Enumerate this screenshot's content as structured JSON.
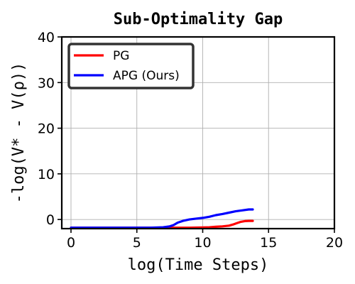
{
  "chart_data": {
    "type": "line",
    "title": "Sub-Optimality Gap",
    "xlabel": "log(Time Steps)",
    "ylabel": "-log(V* - V(ρ))",
    "xlim": [
      -0.7,
      20
    ],
    "ylim": [
      -2,
      40
    ],
    "xticks": [
      0,
      5,
      10,
      15,
      20
    ],
    "yticks": [
      0,
      10,
      20,
      30,
      40
    ],
    "grid": true,
    "legend": {
      "placement": "top-left"
    },
    "series": [
      {
        "name": "PG",
        "color": "#ff0000",
        "x": [
          0,
          2,
          4,
          6,
          8,
          9,
          10,
          10.5,
          11,
          11.5,
          12,
          12.3,
          12.6,
          12.9,
          13.2,
          13.5,
          13.8
        ],
        "y": [
          -1.8,
          -1.8,
          -1.8,
          -1.8,
          -1.8,
          -1.8,
          -1.75,
          -1.7,
          -1.6,
          -1.5,
          -1.35,
          -1.1,
          -0.8,
          -0.5,
          -0.35,
          -0.3,
          -0.3
        ]
      },
      {
        "name": "APG (Ours)",
        "color": "#0000ff",
        "x": [
          0,
          2,
          4,
          6,
          7,
          7.5,
          7.8,
          8.1,
          8.5,
          9,
          9.5,
          10,
          10.5,
          11,
          11.5,
          12,
          12.5,
          13,
          13.5,
          13.8
        ],
        "y": [
          -1.8,
          -1.8,
          -1.8,
          -1.8,
          -1.7,
          -1.5,
          -1.2,
          -0.7,
          -0.3,
          0.0,
          0.2,
          0.35,
          0.6,
          0.95,
          1.2,
          1.5,
          1.8,
          2.0,
          2.2,
          2.2
        ]
      }
    ]
  }
}
